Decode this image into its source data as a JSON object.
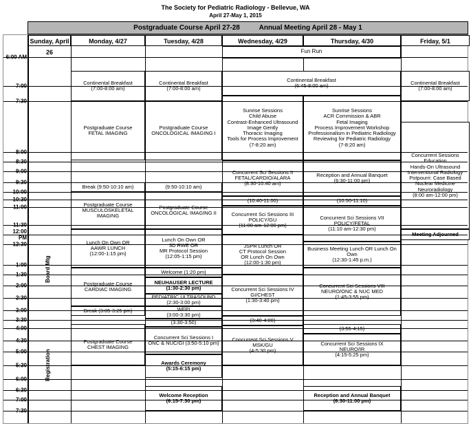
{
  "header": {
    "title": "The Society for Pediatric Radiology - Bellevue, WA",
    "subtitle": "April 27-May 1, 2015",
    "banner": "Postgraduate Course April 27-28          Annual Meeting  April 28 - May 1"
  },
  "days": {
    "sun": "Sunday, April 26",
    "mon": "Monday, 4/27",
    "tue": "Tuesday, 4/28",
    "wed": "Wednesday, 4/29",
    "thu": "Thursday, 4/30",
    "fri": "Friday, 5/1"
  },
  "times": [
    "6:00 AM",
    "7:00",
    "7:30",
    "8:00",
    "8:30",
    "9:00",
    "9:30",
    "10:00",
    "10:30",
    "11:00",
    "11:30",
    "12:00 PM",
    "12:30",
    "1:00",
    "1:30",
    "2:00",
    "2:30",
    "3:00",
    "3:30",
    "4:00",
    "4:30",
    "5:00",
    "5:30",
    "6:00",
    "6:30",
    "7:00",
    "7:30"
  ],
  "sun_board": "Board Mtg",
  "sun_reg": "Registration",
  "mon": {
    "breakfast": "Continental Breakfast\n(7:00-8:00 am)",
    "fetal": "Postgraduate Course\nFETAL IMAGING",
    "break1": "Break (9:50-10:10 am)",
    "msk": "Postgraduate Course\nMUSCULOSKELETAL IMAGING",
    "lunch": "Lunch On Own OR\nAAWR LUNCH\n(12:00-1:15 pm)",
    "cardiac": "Postgraduate Course\nCARDIAC IMAGING",
    "break2": "Break (3:05-3:25 pm)",
    "chest": "Postgraduate Course\nCHEST IMAGING"
  },
  "tue": {
    "breakfast": "Continental Breakfast\n(7:00-8:00 am)",
    "onc1": "Postgraduate Course\nONCOLOGICAL IMAGING I",
    "break1": "(9:50-10:10 am)",
    "onc2": "Postgraduate Course\nONCOLOGICAL IMAGING II",
    "lunch": "Lunch On Own OR\n3D RWE OR\nMR Protocol Session\n(12:05-1:15 pm)",
    "welcome": "Welcome (1:20 pm)",
    "neuhauser": "NEUHAUSER LECTURE\n(1:30-2:30 pm)",
    "pedus": "PEDIATRIC ULTRASOUND\n(2:30-3:00 pm)",
    "wfpi": "WFPI\n(3:00-3:30 pm)",
    "b330": "(3:30-3:50)",
    "sci1": "Concurrent Sci Sessions I\nONC & NUC/GI      (3:50-5:10 pm)",
    "awards": "Awards  Ceremony\n(5:15-6:15 pm)",
    "reception": "Welcome Reception\n(6:15-7:30 pm)"
  },
  "wed": {
    "funrun": "Fun Run",
    "breakfast": "Continental Breakfast\n(6:45-8:00 am)",
    "sunrise": "Sunrise Sessions\nChild Abuse\nContrast-Enhanced Ultrasound\nImage Gently\nThoracic Imaging\nTools for Process Improvement\n(7-8:20 am)",
    "sci2": "Concurrent Sci Sessions II\nFETAL/CARDIO/ALARA\n(8:30-10:40 am)",
    "b1040": "(10:40-11:00)",
    "sci3": "Concurrent Sci Sessions  III\nPOLICY/GU\n(11:00 am-12:00 pm)",
    "jspr": "JSPR Lunch OR\nCT Protocol Session\nOR Lunch On Own\n(12:00-1:30 pm)",
    "sci4": "Concurrent  Sci Sessions IV\nGI/CHEST\n(1:30-3:40 pm)",
    "b340": "(3:40-4:00)",
    "sci5": "Concurrent Sci Sessions V\nMSK/GU\n(4-5:30 pm)"
  },
  "thu": {
    "sunrise": "Sunrise Sessions\nACR Commission & ABR\nFetal Imaging\nProcess Improvement Workshop\nProfessionalism in Pediatric Radiology\nReviewing for Pediatric Radiology\n(7-8:20 am)",
    "banquet1": "Reception and Annual Banquet\n(6:30-11:00 pm)",
    "b1050": "(10:50-11:10)",
    "sci7": "Concurrent Sci Sessions VII\nPOLICY/FETAL\n(11:10 am-12:30 pm)",
    "bizlunch": "Business Meeting Lunch OR Lunch On Own\n(12:30-1:45 p.m.)",
    "sci8": "Concurrent Sci Sessions VIII\nNEURO/ONC & NUC MED\n(1:45-3:55 pm)",
    "b355": "(3:55-4:15)",
    "sci9": "Concurrent Sci Sessions IX\nNEURO/IR\n(4:15-5:25 pm)",
    "banquet2": "Reception and Annual Banquet\n(6:30-11:00 pm)"
  },
  "fri": {
    "breakfast": "Continental Breakfast\n(7:00-8:00 am)",
    "concurrent": "Concurrent Sessions\nEducation\nHands-On Ultrasound\nInterventional Radiology\nPotpourri: Case Based\nNuclear Medicine\nNeuroradiology\n(8:00 am-12:00 pm)",
    "adjourn": "Meeting Adjourned"
  }
}
